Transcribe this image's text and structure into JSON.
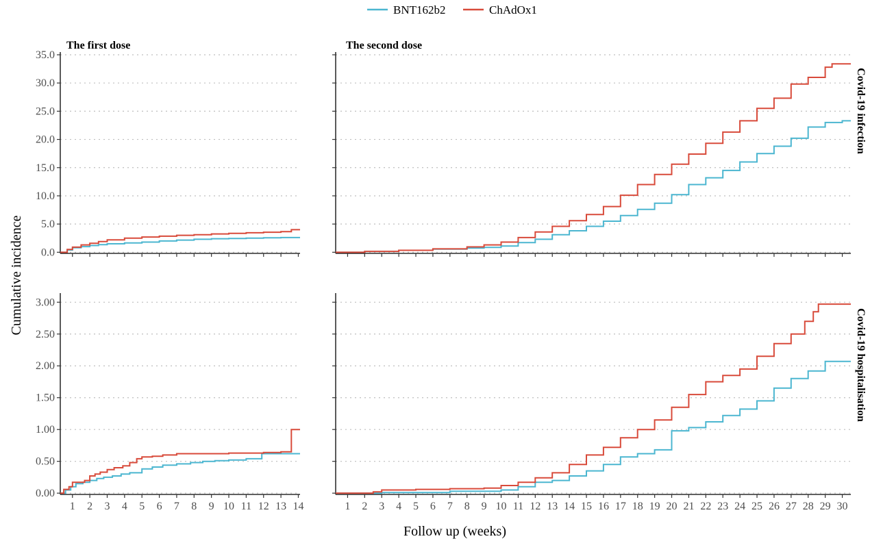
{
  "legend": {
    "items": [
      {
        "label": "BNT162b2",
        "color": "#4BB6D0"
      },
      {
        "label": "ChAdOx1",
        "color": "#D84A3A"
      }
    ]
  },
  "y_axis_title": "Cumulative incidence",
  "x_axis_title": "Follow up (weeks)",
  "column_titles": [
    "The first dose",
    "The second dose"
  ],
  "row_strips": [
    "Covid-19 infection",
    "Covid-19 hospitalisation"
  ],
  "chart_data": [
    {
      "type": "line",
      "step": true,
      "panel": "The first dose / Covid-19 infection",
      "xlim": [
        0.3,
        14.1
      ],
      "ylim": [
        -0.2,
        35.0
      ],
      "xticks": [
        1,
        2,
        3,
        4,
        5,
        6,
        7,
        8,
        9,
        10,
        11,
        12,
        13,
        14
      ],
      "yticks": [
        0,
        5,
        10,
        15,
        20,
        25,
        30,
        35
      ],
      "ytick_labels": [
        "0.0",
        "5.0",
        "10.0",
        "15.0",
        "20.0",
        "25.0",
        "30.0",
        "35.0"
      ],
      "grid": "horizontal-dotted",
      "series": [
        {
          "name": "BNT162b2",
          "color": "#4BB6D0",
          "x": [
            0.3,
            0.7,
            1,
            1.5,
            2,
            2.5,
            3,
            4,
            5,
            6,
            7,
            8,
            9,
            10,
            11,
            12,
            13,
            14.1
          ],
          "y": [
            0,
            0.4,
            0.8,
            1.0,
            1.2,
            1.35,
            1.5,
            1.65,
            1.8,
            2.0,
            2.15,
            2.3,
            2.4,
            2.45,
            2.5,
            2.55,
            2.6,
            2.6
          ]
        },
        {
          "name": "ChAdOx1",
          "color": "#D84A3A",
          "x": [
            0.3,
            0.7,
            1,
            1.5,
            2,
            2.5,
            3,
            4,
            5,
            6,
            7,
            8,
            9,
            10,
            11,
            12,
            13,
            13.6,
            14.1
          ],
          "y": [
            0,
            0.5,
            0.9,
            1.3,
            1.6,
            1.9,
            2.2,
            2.5,
            2.7,
            2.85,
            3.0,
            3.1,
            3.25,
            3.35,
            3.45,
            3.55,
            3.65,
            4.0,
            4.0
          ]
        }
      ]
    },
    {
      "type": "line",
      "step": true,
      "panel": "The second dose / Covid-19 infection",
      "xlim": [
        0.3,
        30.5
      ],
      "ylim": [
        -0.2,
        35.0
      ],
      "xticks": [
        1,
        2,
        3,
        4,
        5,
        6,
        7,
        8,
        9,
        10,
        11,
        12,
        13,
        14,
        15,
        16,
        17,
        18,
        19,
        20,
        21,
        22,
        23,
        24,
        25,
        26,
        27,
        28,
        29,
        30
      ],
      "yticks": [
        0,
        5,
        10,
        15,
        20,
        25,
        30,
        35
      ],
      "grid": "horizontal-dotted",
      "series": [
        {
          "name": "BNT162b2",
          "color": "#4BB6D0",
          "x": [
            0.3,
            2,
            4,
            6,
            8,
            9,
            10,
            11,
            12,
            13,
            14,
            15,
            16,
            17,
            18,
            19,
            20,
            21,
            22,
            23,
            24,
            25,
            26,
            27,
            28,
            29,
            30,
            30.5
          ],
          "y": [
            0,
            0.15,
            0.35,
            0.55,
            0.75,
            0.85,
            1.1,
            1.7,
            2.3,
            3.1,
            3.8,
            4.6,
            5.5,
            6.5,
            7.6,
            8.7,
            10.2,
            12.0,
            13.2,
            14.5,
            16.0,
            17.5,
            18.8,
            20.2,
            22.2,
            23.0,
            23.3,
            23.3
          ]
        },
        {
          "name": "ChAdOx1",
          "color": "#D84A3A",
          "x": [
            0.3,
            2,
            4,
            6,
            8,
            9,
            10,
            11,
            12,
            13,
            14,
            15,
            16,
            17,
            18,
            19,
            20,
            21,
            22,
            23,
            24,
            25,
            26,
            27,
            28,
            29,
            29.4,
            30.5
          ],
          "y": [
            0,
            0.15,
            0.35,
            0.6,
            0.95,
            1.3,
            1.8,
            2.6,
            3.6,
            4.6,
            5.6,
            6.7,
            8.1,
            10.1,
            12.0,
            13.8,
            15.6,
            17.4,
            19.3,
            21.3,
            23.3,
            25.5,
            27.3,
            29.8,
            31.0,
            32.8,
            33.4,
            33.4
          ]
        }
      ]
    },
    {
      "type": "line",
      "step": true,
      "panel": "The first dose / Covid-19 hospitalisation",
      "xlim": [
        0.3,
        14.1
      ],
      "ylim": [
        -0.02,
        3.1
      ],
      "xticks": [
        1,
        2,
        3,
        4,
        5,
        6,
        7,
        8,
        9,
        10,
        11,
        12,
        13,
        14
      ],
      "yticks": [
        0,
        0.5,
        1.0,
        1.5,
        2.0,
        2.5,
        3.0
      ],
      "ytick_labels": [
        "0.00",
        "0.50",
        "1.00",
        "1.50",
        "2.00",
        "2.50",
        "3.00"
      ],
      "grid": "horizontal-dotted",
      "series": [
        {
          "name": "BNT162b2",
          "color": "#4BB6D0",
          "x": [
            0.3,
            0.6,
            0.9,
            1.2,
            1.6,
            2,
            2.4,
            2.8,
            3.3,
            3.8,
            4.3,
            5,
            5.6,
            6.2,
            7,
            7.8,
            8.5,
            9.2,
            10,
            11,
            11.9,
            12.5,
            14.1
          ],
          "y": [
            0,
            0.05,
            0.1,
            0.15,
            0.17,
            0.2,
            0.23,
            0.25,
            0.27,
            0.3,
            0.32,
            0.38,
            0.41,
            0.44,
            0.46,
            0.48,
            0.5,
            0.51,
            0.52,
            0.54,
            0.62,
            0.62,
            0.62
          ]
        },
        {
          "name": "ChAdOx1",
          "color": "#D84A3A",
          "x": [
            0.3,
            0.5,
            0.8,
            1.0,
            1.4,
            1.7,
            2,
            2.3,
            2.6,
            3,
            3.4,
            3.9,
            4.3,
            4.7,
            5,
            5.6,
            6.2,
            7,
            8,
            9,
            10,
            11,
            12,
            13,
            13.6,
            14.1
          ],
          "y": [
            0,
            0.06,
            0.1,
            0.17,
            0.17,
            0.2,
            0.27,
            0.3,
            0.33,
            0.37,
            0.4,
            0.43,
            0.48,
            0.54,
            0.57,
            0.58,
            0.6,
            0.62,
            0.62,
            0.62,
            0.63,
            0.63,
            0.64,
            0.65,
            1.0,
            1.0
          ]
        }
      ]
    },
    {
      "type": "line",
      "step": true,
      "panel": "The second dose / Covid-19 hospitalisation",
      "xlim": [
        0.3,
        30.5
      ],
      "ylim": [
        -0.02,
        3.1
      ],
      "xticks": [
        1,
        2,
        3,
        4,
        5,
        6,
        7,
        8,
        9,
        10,
        11,
        12,
        13,
        14,
        15,
        16,
        17,
        18,
        19,
        20,
        21,
        22,
        23,
        24,
        25,
        26,
        27,
        28,
        29,
        30
      ],
      "yticks": [
        0,
        0.5,
        1.0,
        1.5,
        2.0,
        2.5,
        3.0
      ],
      "grid": "horizontal-dotted",
      "series": [
        {
          "name": "BNT162b2",
          "color": "#4BB6D0",
          "x": [
            0.3,
            3,
            7,
            10,
            11,
            12,
            13,
            14,
            15,
            16,
            17,
            18,
            19,
            20,
            21,
            22,
            23,
            24,
            25,
            26,
            27,
            28,
            29,
            30.5
          ],
          "y": [
            0,
            0.01,
            0.03,
            0.05,
            0.1,
            0.17,
            0.2,
            0.27,
            0.35,
            0.45,
            0.57,
            0.62,
            0.68,
            0.98,
            1.03,
            1.12,
            1.22,
            1.32,
            1.45,
            1.65,
            1.8,
            1.92,
            2.07,
            2.07
          ]
        },
        {
          "name": "ChAdOx1",
          "color": "#D84A3A",
          "x": [
            0.3,
            2.5,
            3,
            5,
            7,
            9,
            10,
            11,
            12,
            13,
            14,
            15,
            16,
            17,
            18,
            19,
            20,
            21,
            22,
            23,
            24,
            25,
            26,
            27,
            27.8,
            28.3,
            28.6,
            30.5
          ],
          "y": [
            0,
            0.02,
            0.05,
            0.06,
            0.07,
            0.08,
            0.12,
            0.17,
            0.24,
            0.32,
            0.45,
            0.6,
            0.72,
            0.87,
            1.0,
            1.15,
            1.35,
            1.55,
            1.75,
            1.85,
            1.95,
            2.15,
            2.35,
            2.5,
            2.7,
            2.85,
            2.97,
            2.97
          ]
        }
      ]
    }
  ]
}
